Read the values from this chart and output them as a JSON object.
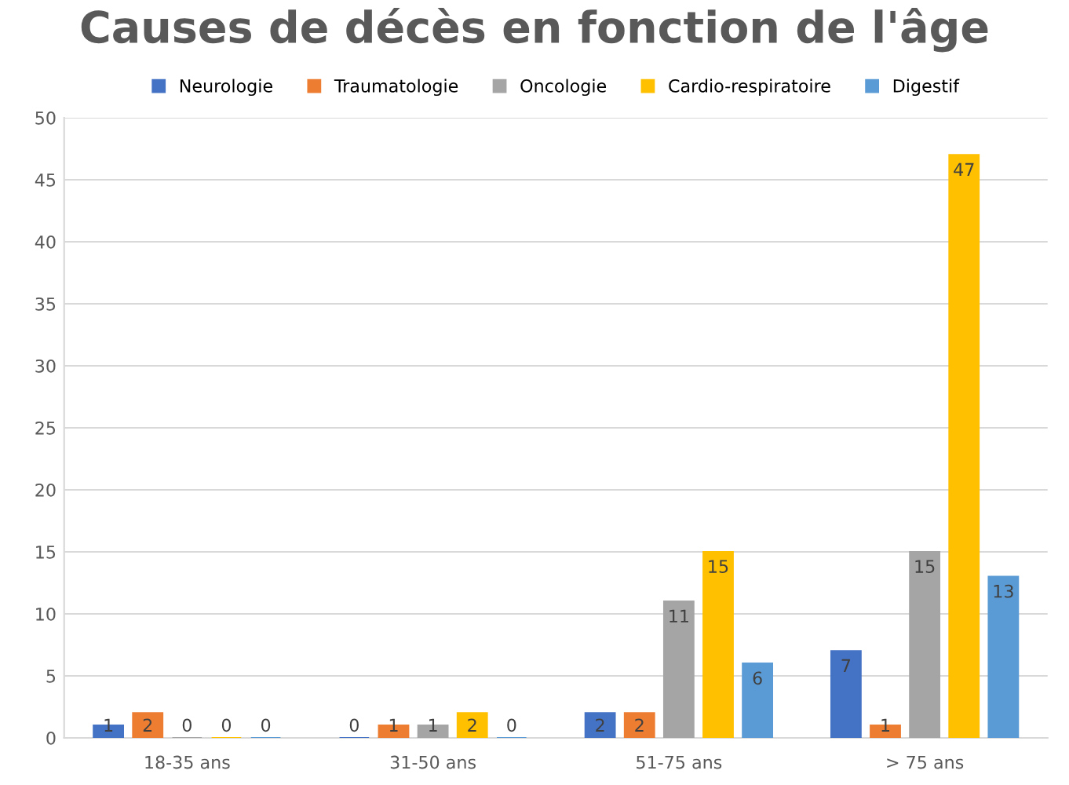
{
  "chart_data": {
    "type": "bar",
    "title": "Causes de décès en fonction de l'âge",
    "categories": [
      "18-35 ans",
      "31-50 ans",
      "51-75 ans",
      "> 75 ans"
    ],
    "series": [
      {
        "name": "Neurologie",
        "color": "#4472c4",
        "values": [
          1,
          0,
          2,
          7
        ]
      },
      {
        "name": "Traumatologie",
        "color": "#ed7d31",
        "values": [
          2,
          1,
          2,
          1
        ]
      },
      {
        "name": "Oncologie",
        "color": "#a5a5a5",
        "values": [
          0,
          1,
          11,
          15
        ]
      },
      {
        "name": "Cardio-respiratoire",
        "color": "#ffc000",
        "values": [
          0,
          2,
          15,
          47
        ]
      },
      {
        "name": "Digestif",
        "color": "#5b9bd5",
        "values": [
          0,
          0,
          6,
          13
        ]
      }
    ],
    "ylim": [
      0,
      50
    ],
    "yticks": [
      0,
      5,
      10,
      15,
      20,
      25,
      30,
      35,
      40,
      45,
      50
    ],
    "grid": "y",
    "legend": "top",
    "data_labels": true
  }
}
